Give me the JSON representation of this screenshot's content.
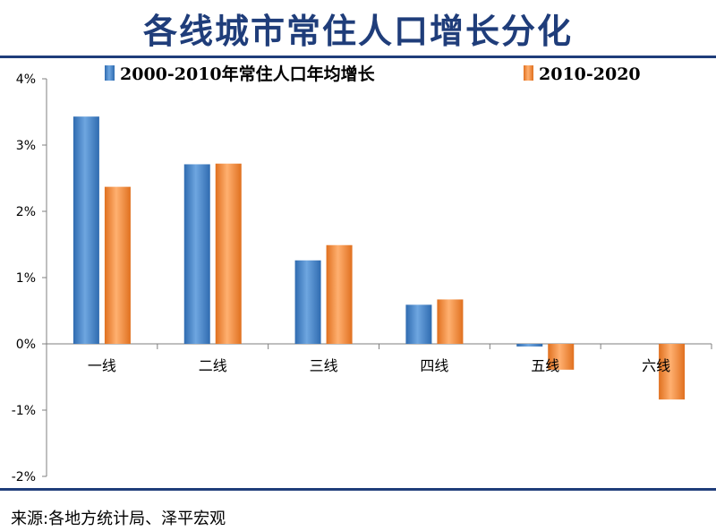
{
  "title": "各线城市常住人口增长分化",
  "source": "来源:各地方统计局、泽平宏观",
  "colors": {
    "title": "#1f3d7a",
    "series1": "#4a86c8",
    "series2": "#f08a3a"
  },
  "chart_data": {
    "type": "bar",
    "categories": [
      "一线",
      "二线",
      "三线",
      "四线",
      "五线",
      "六线"
    ],
    "series": [
      {
        "name": "2000-2010年常住人口年均增长",
        "values": [
          3.43,
          2.71,
          1.26,
          0.59,
          -0.04,
          0.0
        ]
      },
      {
        "name": "2010-2020",
        "values": [
          2.37,
          2.72,
          1.49,
          0.67,
          -0.39,
          -0.84
        ]
      }
    ],
    "y_ticks": [
      "4%",
      "3%",
      "2%",
      "1%",
      "0%",
      "-1%",
      "-2%"
    ],
    "ylim": [
      -2,
      4
    ],
    "legend_position": "top",
    "grid": false
  }
}
